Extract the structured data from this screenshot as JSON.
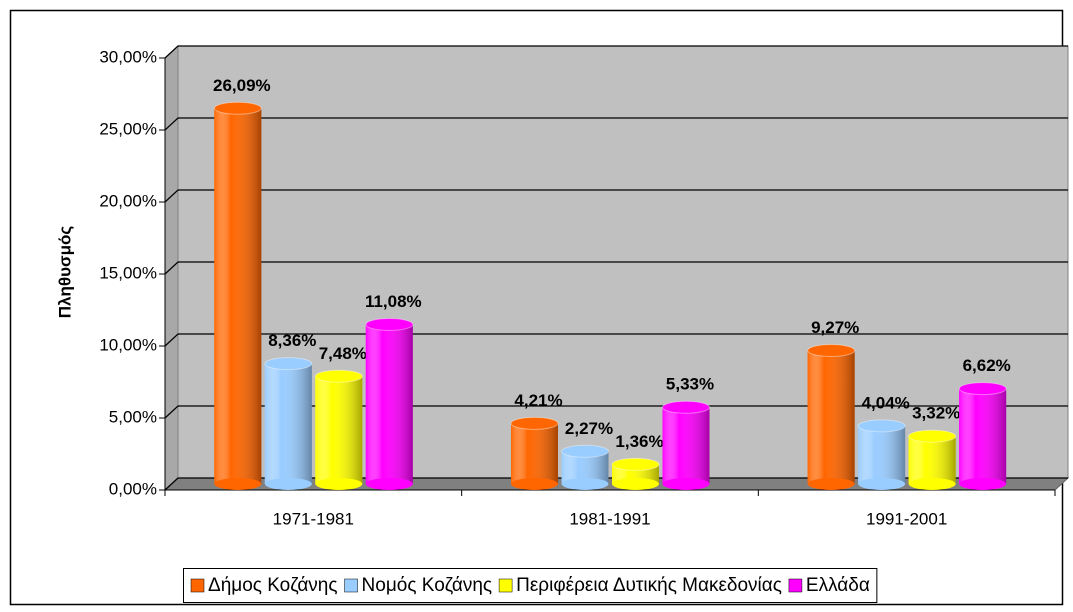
{
  "chart_data": {
    "type": "bar",
    "y_label": "Πληθυσμός",
    "categories": [
      "1971-1981",
      "1981-1991",
      "1991-2001"
    ],
    "series": [
      {
        "name": "Δήμος Κοζάνης",
        "color": "#FF6600",
        "values": [
          26.09,
          4.21,
          9.27
        ],
        "value_labels": [
          "26,09%",
          "4,21%",
          "9,27%"
        ]
      },
      {
        "name": "Νομός Κοζάνης",
        "color": "#99CCFF",
        "values": [
          8.36,
          2.27,
          4.04
        ],
        "value_labels": [
          "8,36%",
          "2,27%",
          "4,04%"
        ]
      },
      {
        "name": "Περιφέρεια Δυτικής Μακεδονίας",
        "color": "#FFFF00",
        "values": [
          7.48,
          1.36,
          3.32
        ],
        "value_labels": [
          "7,48%",
          "1,36%",
          "3,32%"
        ]
      },
      {
        "name": "Ελλάδα",
        "color": "#FF00FF",
        "values": [
          11.08,
          5.33,
          6.62
        ],
        "value_labels": [
          "11,08%",
          "5,33%",
          "6,62%"
        ]
      }
    ],
    "ylim": [
      0,
      30
    ],
    "yticks": [
      {
        "value": 0,
        "label": "0,00%"
      },
      {
        "value": 5,
        "label": "5,00%"
      },
      {
        "value": 10,
        "label": "10,00%"
      },
      {
        "value": 15,
        "label": "15,00%"
      },
      {
        "value": 20,
        "label": "20,00%"
      },
      {
        "value": 25,
        "label": "25,00%"
      },
      {
        "value": 30,
        "label": "30,00%"
      }
    ],
    "grid": true,
    "legend": "bottom"
  }
}
